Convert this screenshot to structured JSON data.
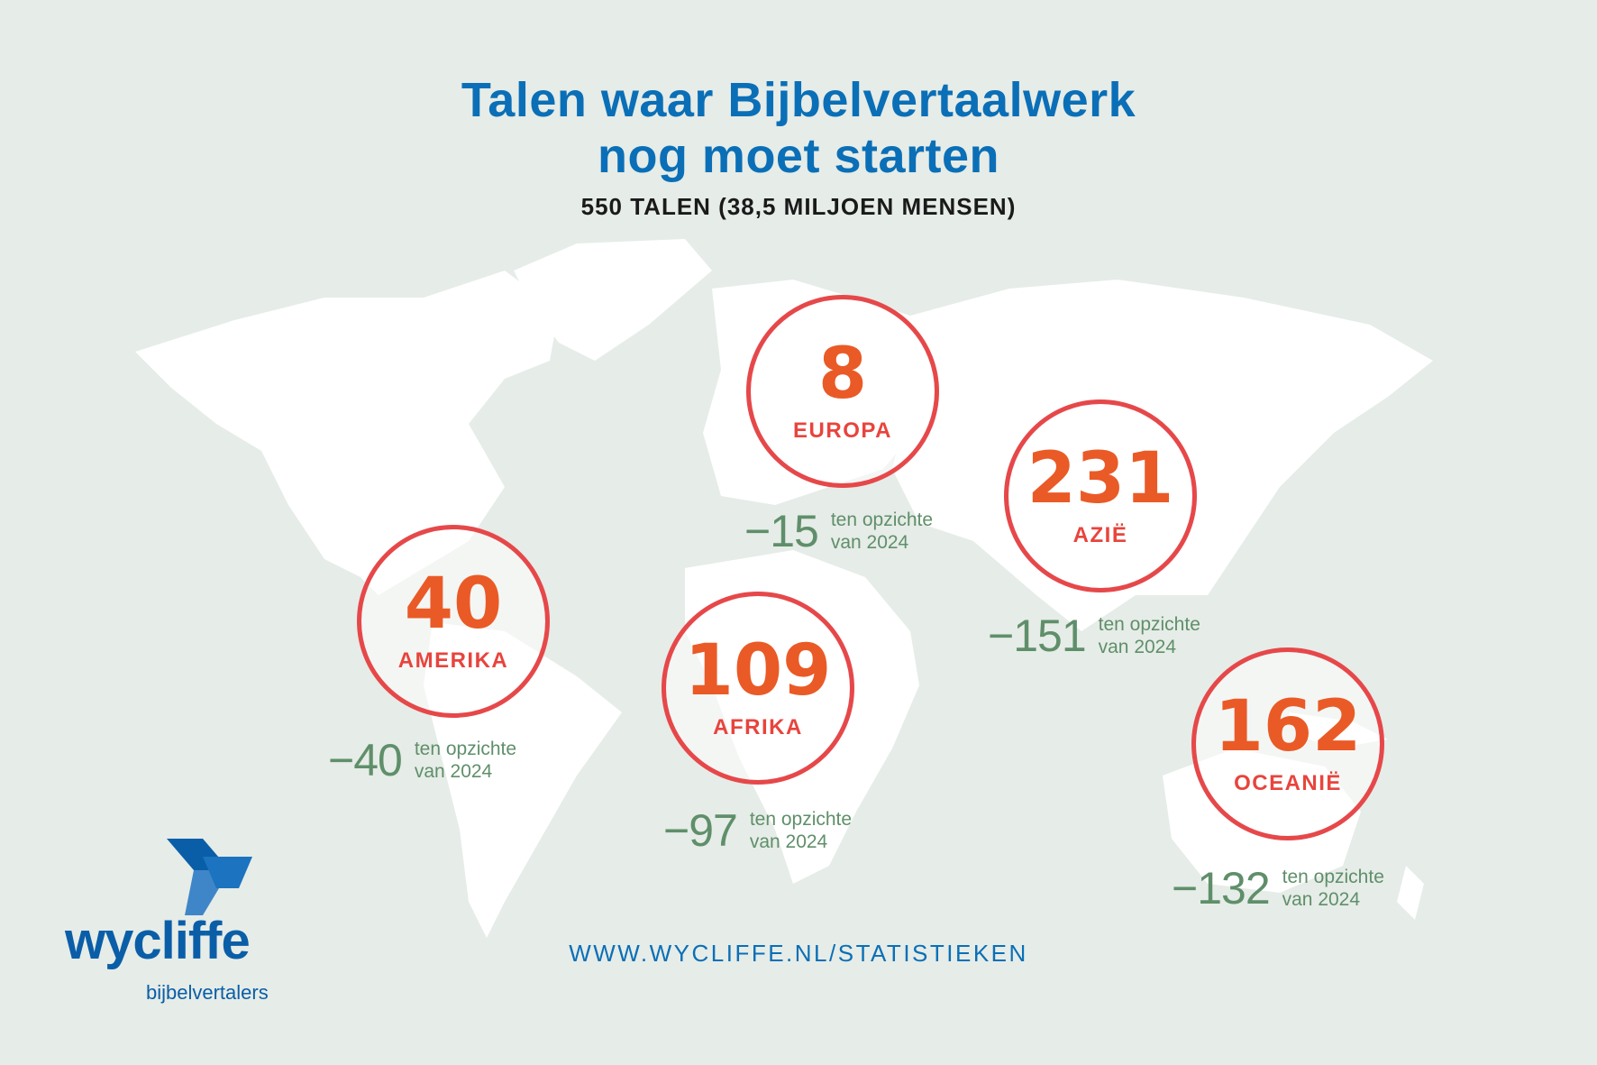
{
  "title_line1": "Talen waar Bijbelvertaalwerk",
  "title_line2": "nog moet starten",
  "subtitle": "550 TALEN (38,5 MILJOEN MENSEN)",
  "url": "WWW.WYCLIFFE.NL/STATISTIEKEN",
  "logo": {
    "name": "wycliffe",
    "tagline": "bijbelvertalers"
  },
  "note_line1": "ten opzichte",
  "note_line2": "van 2024",
  "colors": {
    "title": "#0a6fb7",
    "count": "#ea5a26",
    "circle_border": "#e6484a",
    "change": "#5f8f6a",
    "land": "#ffffff",
    "background": "#e6ece7"
  },
  "regions": [
    {
      "name": "EUROPA",
      "count": "8",
      "change": "−15"
    },
    {
      "name": "AZIË",
      "count": "231",
      "change": "−151"
    },
    {
      "name": "AMERIKA",
      "count": "40",
      "change": "−40"
    },
    {
      "name": "AFRIKA",
      "count": "109",
      "change": "−97"
    },
    {
      "name": "OCEANIË",
      "count": "162",
      "change": "−132"
    }
  ]
}
